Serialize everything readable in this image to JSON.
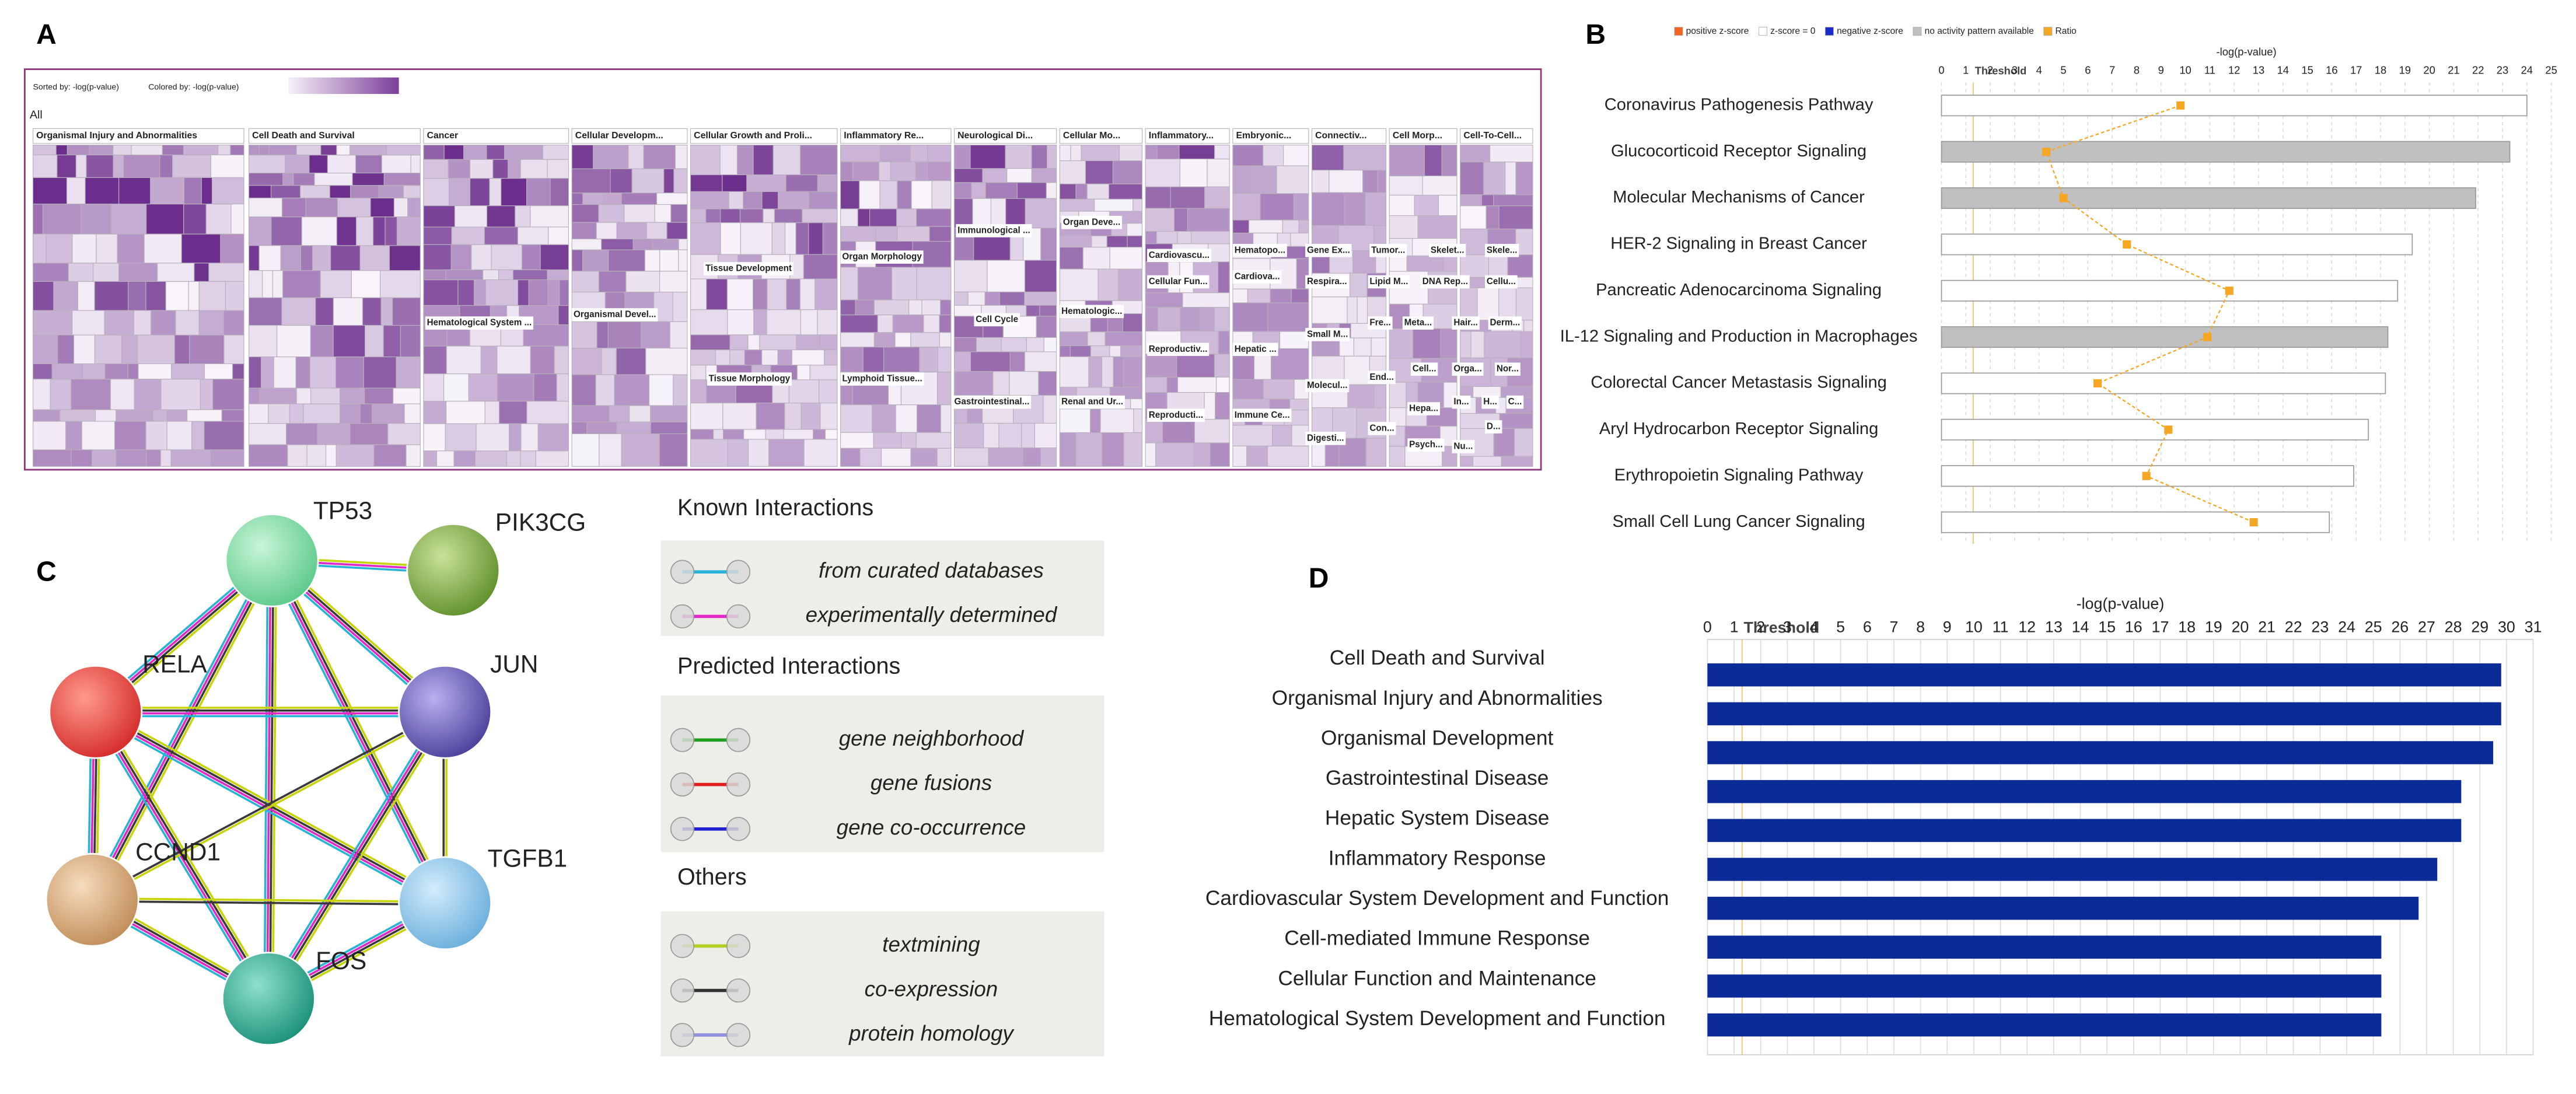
{
  "panel_labels": [
    "A",
    "B",
    "C",
    "D"
  ],
  "panel_a": {
    "legend": [
      "Sorted by: -log(p-value)",
      "Colored by: -log(p-value)"
    ],
    "root": "All",
    "top_categories": [
      "Organismal Injury and Abnormalities",
      "Cell Death and Survival",
      "Cancer",
      "Cellular Developm...",
      "Cellular Growth and Proli...",
      "Inflammatory Re...",
      "Neurological Di...",
      "Cellular Mo...",
      "Inflammatory...",
      "Embryonic...",
      "Connectiv...",
      "Cell Morp...",
      "Cell-To-Cell..."
    ],
    "sub_categories": [
      "Immunological ...",
      "Organ Deve...",
      "Organ Morphology",
      "Tissue Development",
      "Cardiovascu...",
      "Hematopo...",
      "Gene Ex...",
      "Tumor...",
      "Skelet...",
      "Skele...",
      "Cell Cycle",
      "Hematologic...",
      "Cellular Fun...",
      "Cardiova...",
      "Respira...",
      "Lipid M...",
      "DNA Rep...",
      "Cellu...",
      "Hematological System ...",
      "Organismal Devel...",
      "Tissue Morphology",
      "Lymphoid Tissue...",
      "Gastrointestinal...",
      "Renal and Ur...",
      "Reproductiv...",
      "Hepatic ...",
      "Small M...",
      "Fre...",
      "Meta...",
      "Hair...",
      "Derm...",
      "Molecul...",
      "End...",
      "Cell...",
      "Orga...",
      "Nor...",
      "Hepa...",
      "In...",
      "H...",
      "C...",
      "Reproducti...",
      "Immune Ce...",
      "Digesti...",
      "Con...",
      "Psych...",
      "D...",
      "Nu..."
    ]
  },
  "panel_c": {
    "nodes": [
      "TP53",
      "PIK3CG",
      "RELA",
      "JUN",
      "CCND1",
      "TGFB1",
      "FOS"
    ],
    "legend_groups": [
      {
        "title": "Known Interactions",
        "items": [
          "from curated databases",
          "experimentally determined"
        ]
      },
      {
        "title": "Predicted Interactions",
        "items": [
          "gene neighborhood",
          "gene fusions",
          "gene co-occurrence"
        ]
      },
      {
        "title": "Others",
        "items": [
          "textmining",
          "co-expression",
          "protein homology"
        ]
      }
    ]
  },
  "chart_data": [
    {
      "type": "bar",
      "orientation": "horizontal",
      "xlabel": "-log(p-value)",
      "legend": [
        {
          "name": "positive z-score",
          "color": "#f26522"
        },
        {
          "name": "z-score = 0",
          "color": "#ffffff"
        },
        {
          "name": "negative z-score",
          "color": "#1a2dc8"
        },
        {
          "name": "no activity pattern available",
          "color": "#c0c0c0"
        }
      ],
      "categories": [
        "Coronavirus Pathogenesis Pathway",
        "Glucocorticoid Receptor Signaling",
        "Molecular Mechanisms of Cancer",
        "HER-2 Signaling in Breast Cancer",
        "Pancreatic Adenocarcinoma Signaling",
        "IL-12 Signaling and Production in Macrophages",
        "Colorectal Cancer Metastasis Signaling",
        "Aryl Hydrocarbon Receptor Signaling",
        "Erythropoietin Signaling Pathway",
        "Small Cell Lung Cancer Signaling"
      ],
      "values": [
        24.0,
        23.3,
        21.9,
        19.3,
        18.7,
        18.3,
        18.2,
        17.5,
        16.9,
        15.9
      ],
      "bar_colors": [
        "#ffffff",
        "#c0c0c0",
        "#c0c0c0",
        "#ffffff",
        "#ffffff",
        "#c0c0c0",
        "#ffffff",
        "#ffffff",
        "#ffffff",
        "#ffffff"
      ],
      "series": [
        {
          "name": "Ratio",
          "color": "#f5a623",
          "axis": "x2",
          "values": [
            0.098,
            0.043,
            0.05,
            0.076,
            0.118,
            0.109,
            0.064,
            0.093,
            0.084,
            0.128
          ]
        }
      ],
      "xlim": [
        0,
        25
      ],
      "xticks": [
        0,
        1,
        2,
        3,
        4,
        5,
        6,
        7,
        8,
        9,
        10,
        11,
        12,
        13,
        14,
        15,
        16,
        17,
        18,
        19,
        20,
        21,
        22,
        23,
        24,
        25
      ],
      "x2lim": [
        0,
        0.25
      ],
      "threshold": {
        "value": 1.3,
        "label": "Threshold"
      },
      "grid": true
    },
    {
      "type": "bar",
      "orientation": "horizontal",
      "xlabel": "-log(p-value)",
      "categories": [
        "Cell Death and Survival",
        "Organismal Injury and Abnormalities",
        "Organismal Development",
        "Gastrointestinal Disease",
        "Hepatic System Disease",
        "Inflammatory Response",
        "Cardiovascular System Development and Function",
        "Cell-mediated Immune Response",
        "Cellular Function and Maintenance",
        "Hematological System Development and Function"
      ],
      "values": [
        29.8,
        29.8,
        29.5,
        28.3,
        28.3,
        27.4,
        26.7,
        25.3,
        25.3,
        25.3
      ],
      "color": "#0b2c98",
      "xlim": [
        0,
        31
      ],
      "xticks": [
        0,
        1,
        2,
        3,
        4,
        5,
        6,
        7,
        8,
        9,
        10,
        11,
        12,
        13,
        14,
        15,
        16,
        17,
        18,
        19,
        20,
        21,
        22,
        23,
        24,
        25,
        26,
        27,
        28,
        29,
        30,
        31
      ],
      "threshold": {
        "value": 1.3,
        "label": "Threshold"
      },
      "grid": true
    }
  ]
}
